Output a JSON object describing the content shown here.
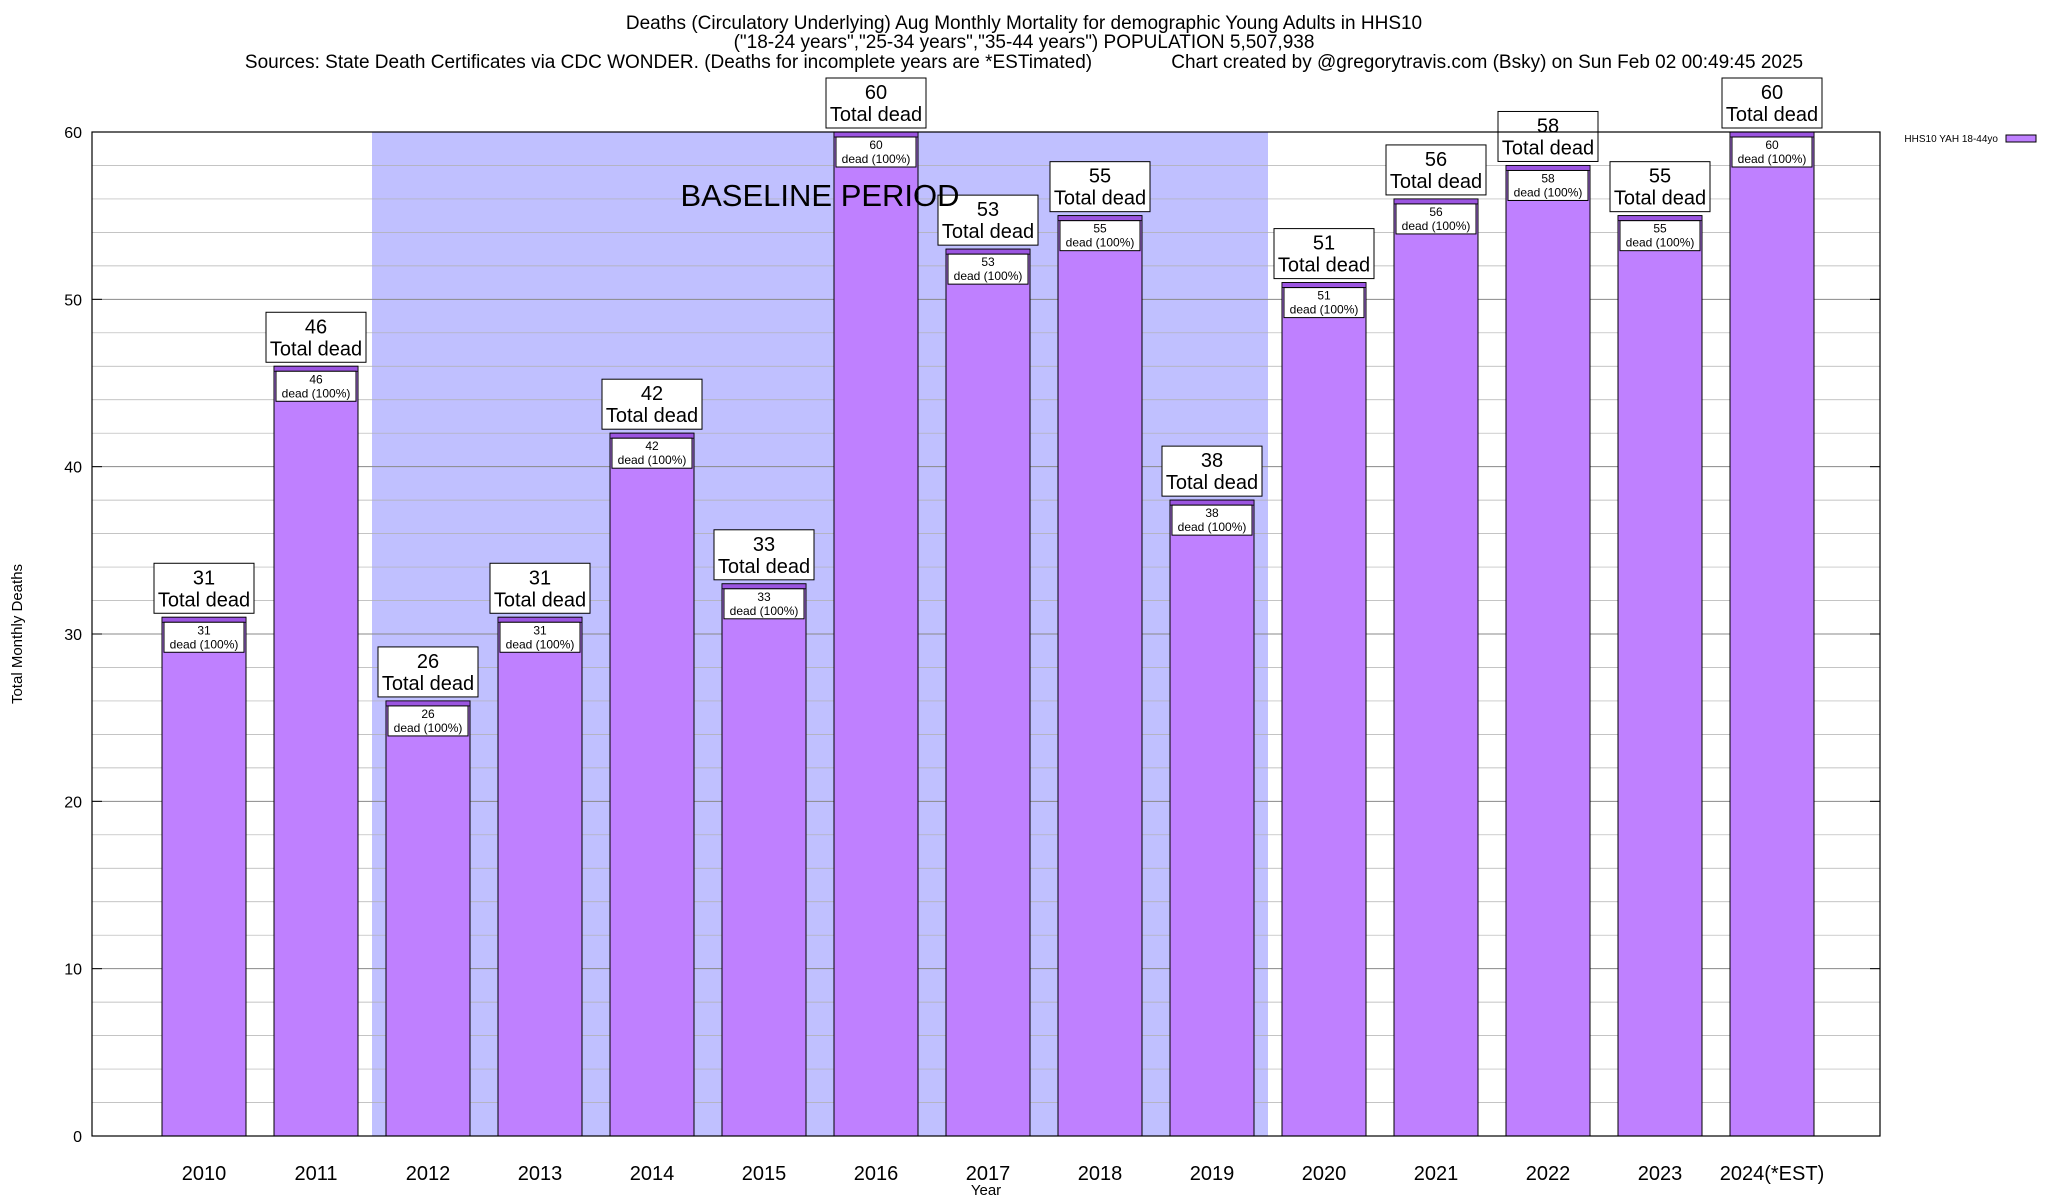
{
  "chart_data": {
    "type": "bar",
    "title_lines": [
      "Deaths (Circulatory Underlying) Aug Monthly Mortality for demographic Young Adults in HHS10",
      "(\"18-24 years\",\"25-34 years\",\"35-44 years\") POPULATION 5,507,938",
      "Sources: State Death Certificates via CDC WONDER. (Deaths for incomplete years are *ESTimated)               Chart created by @gregorytravis.com (Bsky) on Sun Feb 02 00:49:45 2025"
    ],
    "xlabel": "Year",
    "ylabel": "Total Monthly Deaths",
    "categories": [
      "2010",
      "2011",
      "2012",
      "2013",
      "2014",
      "2015",
      "2016",
      "2017",
      "2018",
      "2019",
      "2020",
      "2021",
      "2022",
      "2023",
      "2024(*EST)"
    ],
    "series": [
      {
        "name": "HHS10 YAH 18-44yo",
        "values": [
          31,
          46,
          26,
          31,
          42,
          33,
          60,
          53,
          55,
          38,
          51,
          56,
          58,
          55,
          60
        ]
      }
    ],
    "ylim": [
      0,
      60
    ],
    "yticks": [
      0,
      10,
      20,
      30,
      40,
      50,
      60
    ],
    "grid": true,
    "legend_position": "top-right",
    "bar_label_total": "Total dead",
    "bar_label_inner": "dead (100%)",
    "baseline": {
      "label": "BASELINE PERIOD",
      "from": "2012",
      "to": "2019"
    },
    "colors": {
      "bar": "#bf80ff",
      "bar_top": "#9b55e0",
      "baseline": "#c0c0ff",
      "grid": "#b0b0b0"
    }
  }
}
